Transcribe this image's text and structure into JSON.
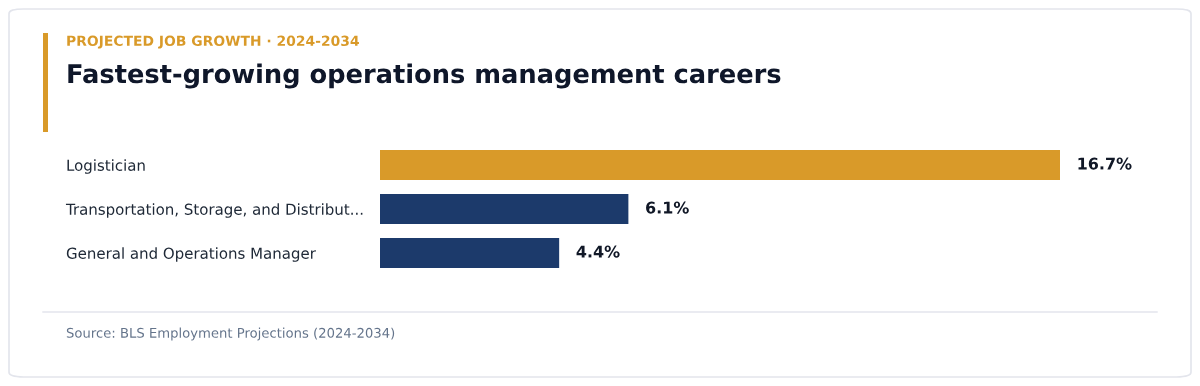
{
  "chart_data": {
    "type": "bar",
    "orientation": "horizontal",
    "subtitle": "PROJECTED JOB GROWTH · 2024-2034",
    "title": "Fastest-growing operations management careers",
    "categories": [
      "Logistician",
      "Transportation, Storage, and Distribut...",
      "General and Operations Manager"
    ],
    "values": [
      16.7,
      6.1,
      4.4
    ],
    "colors": [
      "#d99a29",
      "#1c3a6b",
      "#1c3a6b"
    ],
    "value_labels": [
      "16.7%",
      "6.1%",
      "4.4%"
    ],
    "annotations": [
      "Source: BLS Employment Projections (2024-2034)"
    ],
    "grid": false,
    "legend": false
  }
}
